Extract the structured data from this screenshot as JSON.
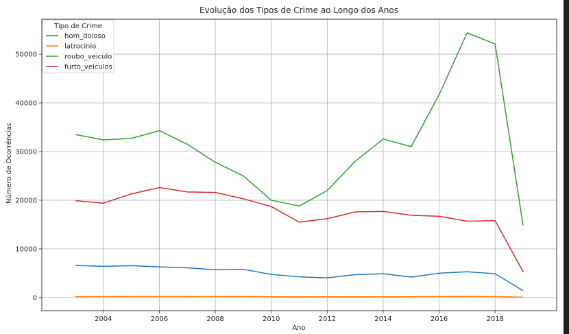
{
  "chart_data": {
    "type": "line",
    "title": "Evolução dos Tipos de Crime ao Longo dos Anos",
    "xlabel": "Ano",
    "ylabel": "Número de Ocorrências",
    "x": [
      2003,
      2004,
      2005,
      2006,
      2007,
      2008,
      2009,
      2010,
      2011,
      2012,
      2013,
      2014,
      2015,
      2016,
      2017,
      2018,
      2019
    ],
    "xlim": [
      2001.8,
      2020.2
    ],
    "ylim": [
      -2700,
      57200
    ],
    "xticks": [
      2004,
      2006,
      2008,
      2010,
      2012,
      2014,
      2016,
      2018
    ],
    "yticks": [
      0,
      10000,
      20000,
      30000,
      40000,
      50000
    ],
    "grid": true,
    "legend": {
      "title": "Tipo de Crime",
      "position": "upper-left"
    },
    "series": [
      {
        "name": "hom_doloso",
        "color": "#1f77b4",
        "values": [
          6600,
          6400,
          6550,
          6300,
          6100,
          5700,
          5800,
          4750,
          4250,
          4050,
          4700,
          4900,
          4200,
          5000,
          5300,
          4900,
          1400
        ]
      },
      {
        "name": "latrocinio",
        "color": "#ff7f0e",
        "values": [
          180,
          190,
          200,
          210,
          200,
          230,
          220,
          180,
          150,
          170,
          170,
          180,
          170,
          220,
          230,
          200,
          60
        ]
      },
      {
        "name": "roubo_veiculo",
        "color": "#2ca02c",
        "values": [
          33500,
          32400,
          32700,
          34300,
          31500,
          27800,
          25000,
          20000,
          18800,
          22000,
          28000,
          32600,
          31000,
          41700,
          54400,
          52100,
          14800
        ]
      },
      {
        "name": "furto_veiculos",
        "color": "#d62728",
        "values": [
          19900,
          19400,
          21300,
          22600,
          21700,
          21600,
          20300,
          18700,
          15500,
          16200,
          17600,
          17700,
          16900,
          16700,
          15700,
          15800,
          5300
        ]
      }
    ]
  }
}
